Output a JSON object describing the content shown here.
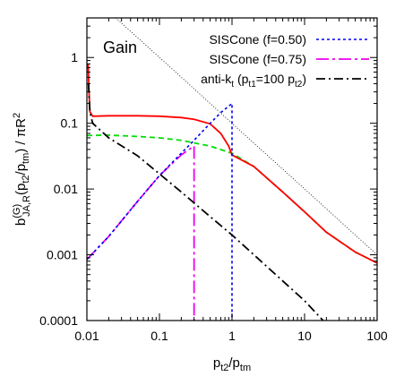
{
  "chart_data": {
    "type": "line",
    "title": "Gain",
    "xlabel": {
      "base": "p",
      "sub1": "t2",
      "mid": "/p",
      "sub2": "tm"
    },
    "ylabel": {
      "b": "b",
      "sup": "(G)",
      "sub": "JA,R",
      "p1": "(p",
      "s1": "t2",
      "p2": "/p",
      "s2": "tm",
      "tail": ") / πR",
      "sup2": "2"
    },
    "x_scale": "log",
    "y_scale": "log",
    "xlim": [
      0.01,
      100
    ],
    "ylim": [
      0.0001,
      4
    ],
    "x_ticks": [
      {
        "value": 0.01,
        "label": "0.01"
      },
      {
        "value": 0.1,
        "label": "0.1"
      },
      {
        "value": 1,
        "label": "1"
      },
      {
        "value": 10,
        "label": "10"
      },
      {
        "value": 100,
        "label": "100"
      }
    ],
    "y_ticks": [
      {
        "value": 0.0001,
        "label": "0.0001"
      },
      {
        "value": 0.001,
        "label": "0.001"
      },
      {
        "value": 0.01,
        "label": "0.01"
      },
      {
        "value": 0.1,
        "label": "0.1"
      },
      {
        "value": 1,
        "label": "1"
      }
    ],
    "legend_position": "top-right",
    "series": [
      {
        "label": "SISCone (f=0.50)",
        "color": "#0000ee",
        "style": "dotted",
        "in_legend": true,
        "points": [
          [
            0.01,
            0.00085
          ],
          [
            0.02,
            0.0019
          ],
          [
            0.05,
            0.0065
          ],
          [
            0.1,
            0.016
          ],
          [
            0.2,
            0.035
          ],
          [
            0.3,
            0.055
          ],
          [
            0.5,
            0.1
          ],
          [
            0.7,
            0.145
          ],
          [
            1.0,
            0.2
          ],
          [
            1.0,
            0.0001
          ]
        ]
      },
      {
        "label": "SISCone (f=0.75)",
        "color": "#ee00ee",
        "style": "dashdot",
        "in_legend": true,
        "points": [
          [
            0.01,
            0.00085
          ],
          [
            0.02,
            0.0019
          ],
          [
            0.05,
            0.0065
          ],
          [
            0.1,
            0.016
          ],
          [
            0.2,
            0.033
          ],
          [
            0.3,
            0.045
          ],
          [
            0.3,
            0.0001
          ]
        ]
      },
      {
        "label": "anti-k",
        "label_sub": "t",
        "label_tail": " (p",
        "label_sub2": "t1",
        "label_tail2": "=100 p",
        "label_sub3": "t2",
        "label_tail3": ")",
        "color": "#000000",
        "style": "dashdotlong",
        "in_legend": true,
        "points": [
          [
            0.0105,
            0.4
          ],
          [
            0.011,
            0.15
          ],
          [
            0.012,
            0.1
          ],
          [
            0.015,
            0.08
          ],
          [
            0.02,
            0.06
          ],
          [
            0.05,
            0.032
          ],
          [
            0.1,
            0.017
          ],
          [
            0.2,
            0.009
          ],
          [
            0.5,
            0.0038
          ],
          [
            1,
            0.002
          ],
          [
            2,
            0.001
          ],
          [
            5,
            0.0004
          ],
          [
            10,
            0.0002
          ],
          [
            18,
            0.0001
          ]
        ]
      },
      {
        "label": "",
        "color": "#ff0000",
        "style": "solid",
        "in_legend": false,
        "points": [
          [
            0.0104,
            0.8
          ],
          [
            0.0107,
            0.3
          ],
          [
            0.011,
            0.15
          ],
          [
            0.012,
            0.128
          ],
          [
            0.02,
            0.13
          ],
          [
            0.05,
            0.13
          ],
          [
            0.1,
            0.128
          ],
          [
            0.2,
            0.122
          ],
          [
            0.3,
            0.115
          ],
          [
            0.5,
            0.098
          ],
          [
            0.7,
            0.07
          ],
          [
            0.9,
            0.045
          ],
          [
            1.0,
            0.033
          ],
          [
            2,
            0.022
          ],
          [
            5,
            0.009
          ],
          [
            10,
            0.0045
          ],
          [
            20,
            0.0022
          ],
          [
            50,
            0.0011
          ],
          [
            100,
            0.00075
          ]
        ]
      },
      {
        "label": "",
        "color": "#00dd00",
        "style": "dashed",
        "in_legend": false,
        "points": [
          [
            0.01,
            0.065
          ],
          [
            0.02,
            0.066
          ],
          [
            0.05,
            0.063
          ],
          [
            0.1,
            0.06
          ],
          [
            0.2,
            0.055
          ],
          [
            0.5,
            0.045
          ],
          [
            1,
            0.035
          ],
          [
            2,
            0.022
          ],
          [
            5,
            0.009
          ],
          [
            10,
            0.0045
          ],
          [
            20,
            0.0022
          ],
          [
            50,
            0.0011
          ],
          [
            100,
            0.00075
          ]
        ]
      },
      {
        "label": "",
        "color": "#000000",
        "style": "finedot",
        "in_legend": false,
        "points": [
          [
            0.025,
            4
          ],
          [
            100,
            0.001
          ]
        ]
      }
    ]
  }
}
